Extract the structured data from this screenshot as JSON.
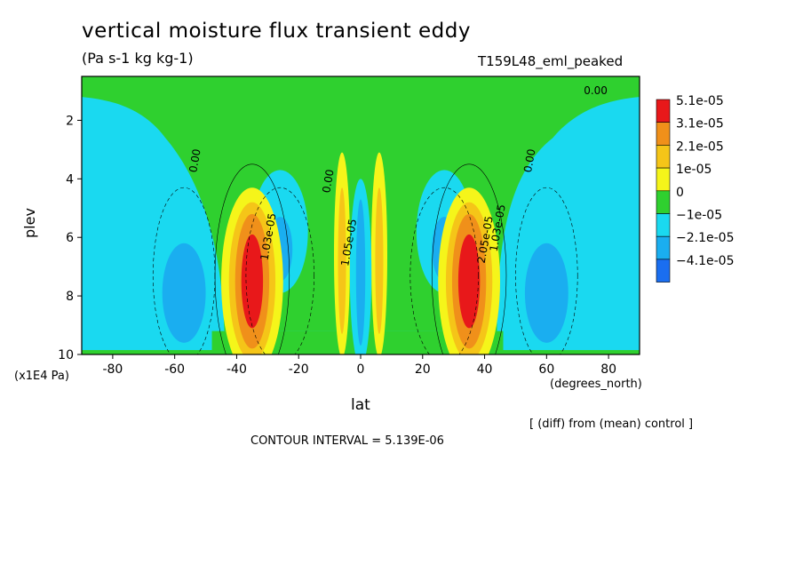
{
  "chart_data": {
    "type": "heatmap",
    "title": "vertical moisture flux transient eddy",
    "units": "(Pa s-1 kg kg-1)",
    "run_name": "T159L48_eml_peaked",
    "xlabel": "lat",
    "x_units": "(degrees_north)",
    "ylabel": "plev",
    "y_units": "(x1E4 Pa)",
    "xlim": [
      -90,
      90
    ],
    "ylim": [
      10,
      0.5
    ],
    "x_ticks": [
      -80,
      -60,
      -40,
      -20,
      0,
      20,
      40,
      60,
      80
    ],
    "y_ticks": [
      2,
      4,
      6,
      8,
      10
    ],
    "y_inverted": true,
    "footer_note": "[ (diff) from (mean) control ]",
    "contour_interval": "CONTOUR INTERVAL = 5.139E-06",
    "contour_labels": [
      "0.00",
      "0.00",
      "0.00",
      "0.00",
      "1.03e-05",
      "2.05e-05",
      "1.03e-05",
      "1.05e-05"
    ],
    "legend": [
      {
        "label": "5.1e-05",
        "color": "#e8181a"
      },
      {
        "label": "3.1e-05",
        "color": "#f0901a"
      },
      {
        "label": "2.1e-05",
        "color": "#f5c518"
      },
      {
        "label": "1e-05",
        "color": "#f5f51a"
      },
      {
        "label": "0",
        "color": "#2fd02f"
      },
      {
        "label": "−1e-05",
        "color": "#1ad9f0"
      },
      {
        "label": "−2.1e-05",
        "color": "#1aaef0"
      },
      {
        "label": "−4.1e-05",
        "color": "#1a6ef0"
      }
    ],
    "features": [
      {
        "lat": -57,
        "plev": 7.9,
        "value": -2.1e-05,
        "kind": "min"
      },
      {
        "lat": -35,
        "plev": 7.5,
        "value": 5.1e-05,
        "kind": "max"
      },
      {
        "lat": -26,
        "plev": 6.5,
        "value": -2.1e-05,
        "kind": "min"
      },
      {
        "lat": -6,
        "plev": 6.8,
        "value": 2.1e-05,
        "kind": "max"
      },
      {
        "lat": 0,
        "plev": 6.5,
        "value": -2.1e-05,
        "kind": "min"
      },
      {
        "lat": 6,
        "plev": 6.8,
        "value": 2.1e-05,
        "kind": "max"
      },
      {
        "lat": 27,
        "plev": 6.5,
        "value": -2.1e-05,
        "kind": "min"
      },
      {
        "lat": 35,
        "plev": 7.5,
        "value": 5.1e-05,
        "kind": "max"
      },
      {
        "lat": 60,
        "plev": 7.9,
        "value": -2.1e-05,
        "kind": "min"
      }
    ]
  }
}
